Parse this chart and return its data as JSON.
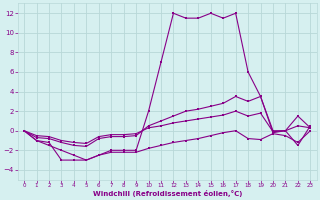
{
  "xlabel": "Windchill (Refroidissement éolien,°C)",
  "ylabel": "",
  "background_color": "#d6f0f0",
  "grid_color": "#b8d8d8",
  "line_color": "#880088",
  "xlim": [
    -0.5,
    23.5
  ],
  "ylim": [
    -5,
    13
  ],
  "yticks": [
    -4,
    -2,
    0,
    2,
    4,
    6,
    8,
    10,
    12
  ],
  "xticks": [
    0,
    1,
    2,
    3,
    4,
    5,
    6,
    7,
    8,
    9,
    10,
    11,
    12,
    13,
    14,
    15,
    16,
    17,
    18,
    19,
    20,
    21,
    22,
    23
  ],
  "series": {
    "peak": [
      0,
      -1,
      -1.2,
      -3,
      -3,
      -3,
      -2.5,
      -2,
      -2,
      -2,
      2,
      7,
      12,
      11.5,
      11.5,
      12,
      11.5,
      12,
      6,
      3.5,
      0,
      0,
      -1.5,
      0.5
    ],
    "upper": [
      0,
      -0.7,
      -0.8,
      -1.2,
      -1.5,
      -1.6,
      -0.8,
      -0.6,
      -0.6,
      -0.5,
      0.5,
      1.0,
      1.5,
      2.0,
      2.2,
      2.5,
      2.8,
      3.5,
      3.0,
      3.5,
      -0.2,
      0.0,
      1.5,
      0.3
    ],
    "mid": [
      0,
      -0.5,
      -0.6,
      -1.0,
      -1.2,
      -1.3,
      -0.6,
      -0.4,
      -0.4,
      -0.3,
      0.3,
      0.5,
      0.8,
      1.0,
      1.2,
      1.4,
      1.6,
      2.0,
      1.5,
      1.8,
      -0.1,
      0.0,
      0.5,
      0.3
    ],
    "lower": [
      0,
      -1.0,
      -1.5,
      -2.0,
      -2.5,
      -3.0,
      -2.5,
      -2.2,
      -2.2,
      -2.2,
      -1.8,
      -1.5,
      -1.2,
      -1.0,
      -0.8,
      -0.5,
      -0.2,
      0.0,
      -0.8,
      -0.9,
      -0.3,
      -0.5,
      -1.2,
      0.0
    ]
  }
}
